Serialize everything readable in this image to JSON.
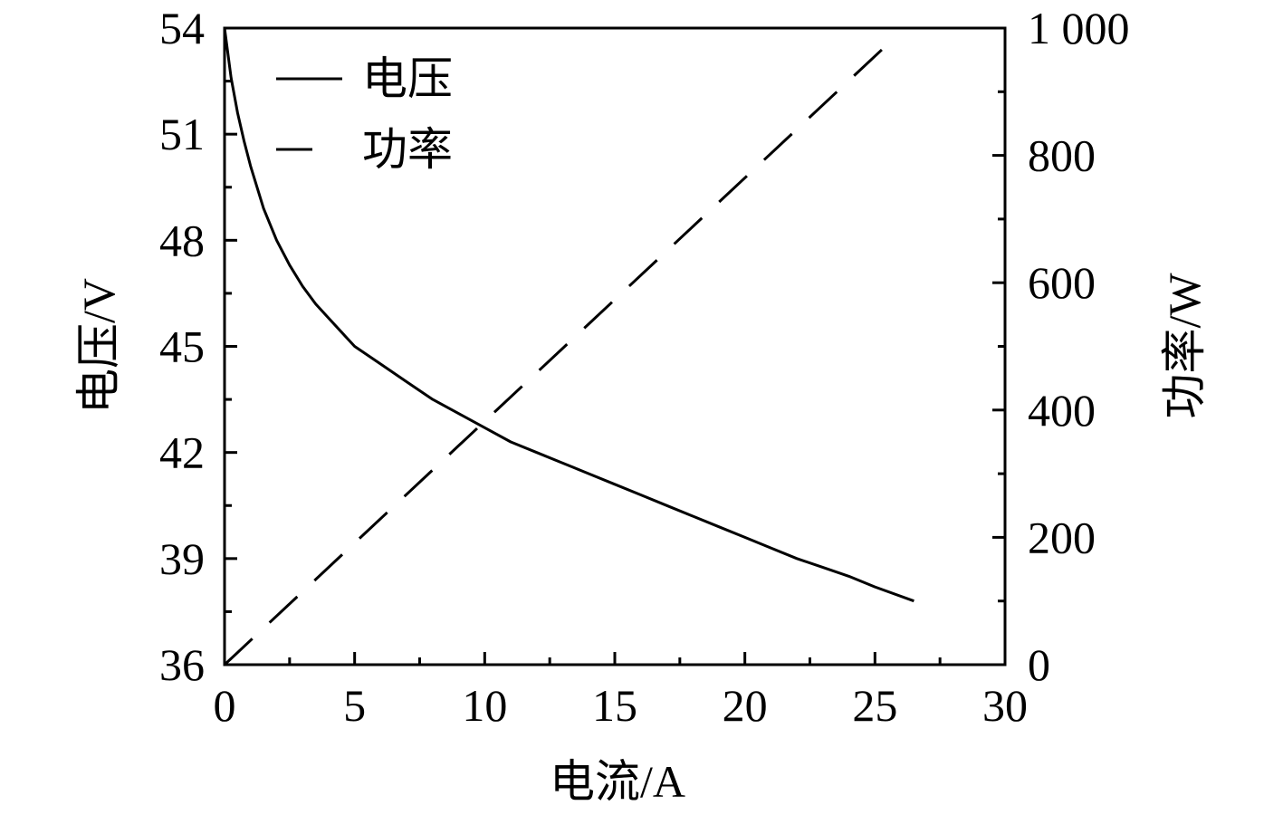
{
  "chart_data": {
    "type": "line",
    "xlabel": "电流/A",
    "ylabel_left": "电压/V",
    "ylabel_right": "功率/W",
    "xlim": [
      0,
      30
    ],
    "ylim_left": [
      36,
      54
    ],
    "ylim_right": [
      0,
      1000
    ],
    "x_ticks": [
      0,
      5,
      10,
      15,
      20,
      25,
      30
    ],
    "y_left_ticks": [
      36,
      39,
      42,
      45,
      48,
      51,
      54
    ],
    "y_right_ticks": [
      0,
      200,
      400,
      600,
      800,
      1000
    ],
    "x_tick_labels": [
      "0",
      "5",
      "10",
      "15",
      "20",
      "25",
      "30"
    ],
    "y_left_tick_labels": [
      "36",
      "39",
      "42",
      "45",
      "48",
      "51",
      "54"
    ],
    "y_right_tick_labels": [
      "0",
      "200",
      "400",
      "600",
      "800",
      "1 000"
    ],
    "grid": false,
    "legend_position": "top-left",
    "series": [
      {
        "name": "电压",
        "axis": "left",
        "style": "solid",
        "color": "#000000",
        "x": [
          0,
          0.25,
          0.5,
          0.75,
          1,
          1.5,
          2,
          2.5,
          3,
          3.5,
          4,
          5,
          6,
          7,
          8,
          9,
          10,
          11,
          12,
          13,
          14,
          15,
          16,
          17,
          18,
          19,
          20,
          21,
          22,
          23,
          24,
          25,
          26.5
        ],
        "y": [
          54.0,
          52.6,
          51.6,
          50.8,
          50.1,
          48.9,
          48.0,
          47.3,
          46.7,
          46.2,
          45.8,
          45.0,
          44.5,
          44.0,
          43.5,
          43.1,
          42.7,
          42.3,
          42.0,
          41.7,
          41.4,
          41.1,
          40.8,
          40.5,
          40.2,
          39.9,
          39.6,
          39.3,
          39.0,
          38.75,
          38.5,
          38.2,
          37.8
        ]
      },
      {
        "name": "功率",
        "axis": "right",
        "style": "dashed",
        "color": "#000000",
        "x": [
          0,
          25.5
        ],
        "y": [
          0,
          975
        ]
      }
    ]
  }
}
